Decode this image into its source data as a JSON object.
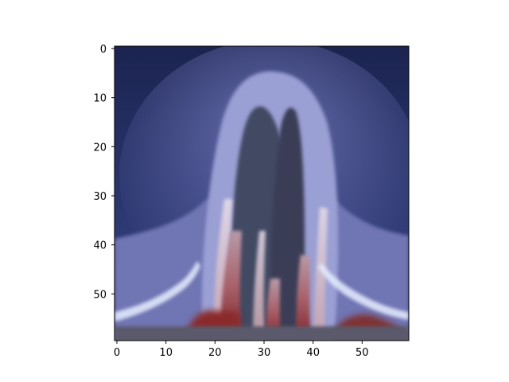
{
  "figure": {
    "image_description_name": "pixelated-image-plot",
    "x_axis": {
      "ticks": [
        0,
        10,
        20,
        30,
        40,
        50
      ],
      "range": [
        -0.5,
        59.5
      ]
    },
    "y_axis": {
      "ticks": [
        0,
        10,
        20,
        30,
        40,
        50
      ],
      "range": [
        -0.5,
        59.5
      ],
      "inverted": true
    },
    "colors": {
      "background_top": "#1c2650",
      "background_mid": "#3d4a86",
      "glow_lavender": "#7b82c0",
      "glow_light": "#b3b7e2",
      "inner_dark": "#3f4660",
      "lower_band": "#4a4b62",
      "tissue_red": "#8f2f28",
      "tissue_pink": "#c98b93",
      "highlight": "#e8f0ff",
      "spine": "#000000"
    }
  }
}
